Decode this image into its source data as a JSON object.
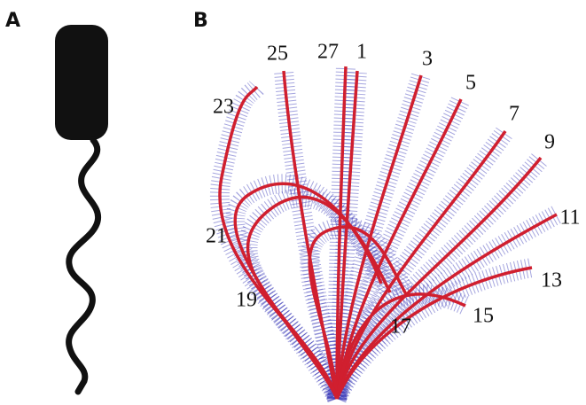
{
  "panels": {
    "A": {
      "label": "A"
    },
    "B": {
      "label": "B",
      "curve_labels": [
        "25",
        "27",
        "1",
        "3",
        "5",
        "7",
        "9",
        "11",
        "13",
        "15",
        "17",
        "19",
        "21",
        "23"
      ]
    }
  }
}
